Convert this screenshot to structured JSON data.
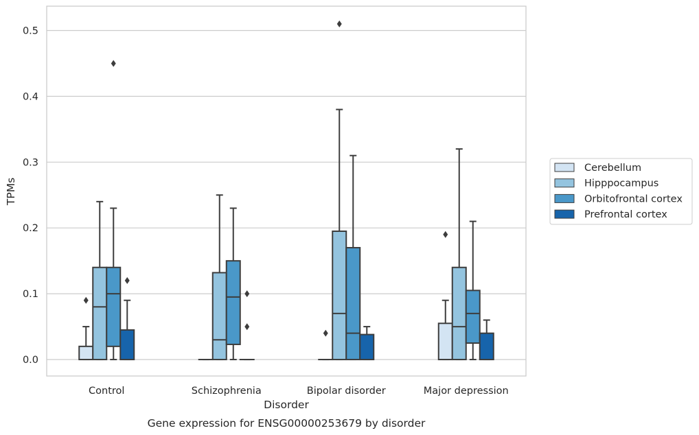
{
  "chart_data": {
    "type": "box",
    "title": "",
    "caption": "Gene expression for ENSG00000253679 by disorder",
    "xlabel": "Disorder",
    "ylabel": "TPMs",
    "ylim": [
      -0.025,
      0.537
    ],
    "yticks": [
      0.0,
      0.1,
      0.2,
      0.3,
      0.4,
      0.5
    ],
    "ytick_labels": [
      "0.0",
      "0.1",
      "0.2",
      "0.3",
      "0.4",
      "0.5"
    ],
    "grid": "horizontal",
    "legend_position": "right",
    "categories": [
      "Control",
      "Schizophrenia",
      "Bipolar disorder",
      "Major depression"
    ],
    "series": [
      {
        "name": "Cerebellum",
        "color": "#d3e4f3",
        "boxes": [
          {
            "q1": 0.0,
            "median": 0.0,
            "q3": 0.02,
            "whisker_low": 0.0,
            "whisker_high": 0.05,
            "outliers": [
              0.09
            ]
          },
          {
            "q1": 0.0,
            "median": 0.0,
            "q3": 0.0,
            "whisker_low": 0.0,
            "whisker_high": 0.0,
            "outliers": []
          },
          {
            "q1": 0.0,
            "median": 0.0,
            "q3": 0.0,
            "whisker_low": 0.0,
            "whisker_high": 0.0,
            "outliers": [
              0.04
            ]
          },
          {
            "q1": 0.0,
            "median": 0.0,
            "q3": 0.055,
            "whisker_low": 0.0,
            "whisker_high": 0.09,
            "outliers": [
              0.19
            ]
          }
        ]
      },
      {
        "name": "Hipppocampus",
        "color": "#94c4df",
        "boxes": [
          {
            "q1": 0.0,
            "median": 0.08,
            "q3": 0.14,
            "whisker_low": 0.0,
            "whisker_high": 0.24,
            "outliers": []
          },
          {
            "q1": 0.0,
            "median": 0.03,
            "q3": 0.132,
            "whisker_low": 0.0,
            "whisker_high": 0.25,
            "outliers": []
          },
          {
            "q1": 0.0,
            "median": 0.07,
            "q3": 0.195,
            "whisker_low": 0.0,
            "whisker_high": 0.38,
            "outliers": [
              0.51
            ]
          },
          {
            "q1": 0.0,
            "median": 0.05,
            "q3": 0.14,
            "whisker_low": 0.0,
            "whisker_high": 0.32,
            "outliers": []
          }
        ]
      },
      {
        "name": "Orbitofrontal cortex",
        "color": "#4a98c9",
        "boxes": [
          {
            "q1": 0.02,
            "median": 0.1,
            "q3": 0.14,
            "whisker_low": 0.0,
            "whisker_high": 0.23,
            "outliers": [
              0.45
            ]
          },
          {
            "q1": 0.023,
            "median": 0.095,
            "q3": 0.15,
            "whisker_low": 0.0,
            "whisker_high": 0.23,
            "outliers": []
          },
          {
            "q1": 0.0,
            "median": 0.04,
            "q3": 0.17,
            "whisker_low": 0.0,
            "whisker_high": 0.31,
            "outliers": []
          },
          {
            "q1": 0.025,
            "median": 0.07,
            "q3": 0.105,
            "whisker_low": 0.0,
            "whisker_high": 0.21,
            "outliers": []
          }
        ]
      },
      {
        "name": "Prefrontal cortex",
        "color": "#1764ab",
        "boxes": [
          {
            "q1": 0.0,
            "median": 0.0,
            "q3": 0.045,
            "whisker_low": 0.0,
            "whisker_high": 0.09,
            "outliers": [
              0.12
            ]
          },
          {
            "q1": 0.0,
            "median": 0.0,
            "q3": 0.0,
            "whisker_low": 0.0,
            "whisker_high": 0.0,
            "outliers": [
              0.05,
              0.1
            ]
          },
          {
            "q1": 0.0,
            "median": 0.0,
            "q3": 0.038,
            "whisker_low": 0.0,
            "whisker_high": 0.05,
            "outliers": []
          },
          {
            "q1": 0.0,
            "median": 0.0,
            "q3": 0.04,
            "whisker_low": 0.0,
            "whisker_high": 0.06,
            "outliers": []
          }
        ]
      }
    ]
  }
}
